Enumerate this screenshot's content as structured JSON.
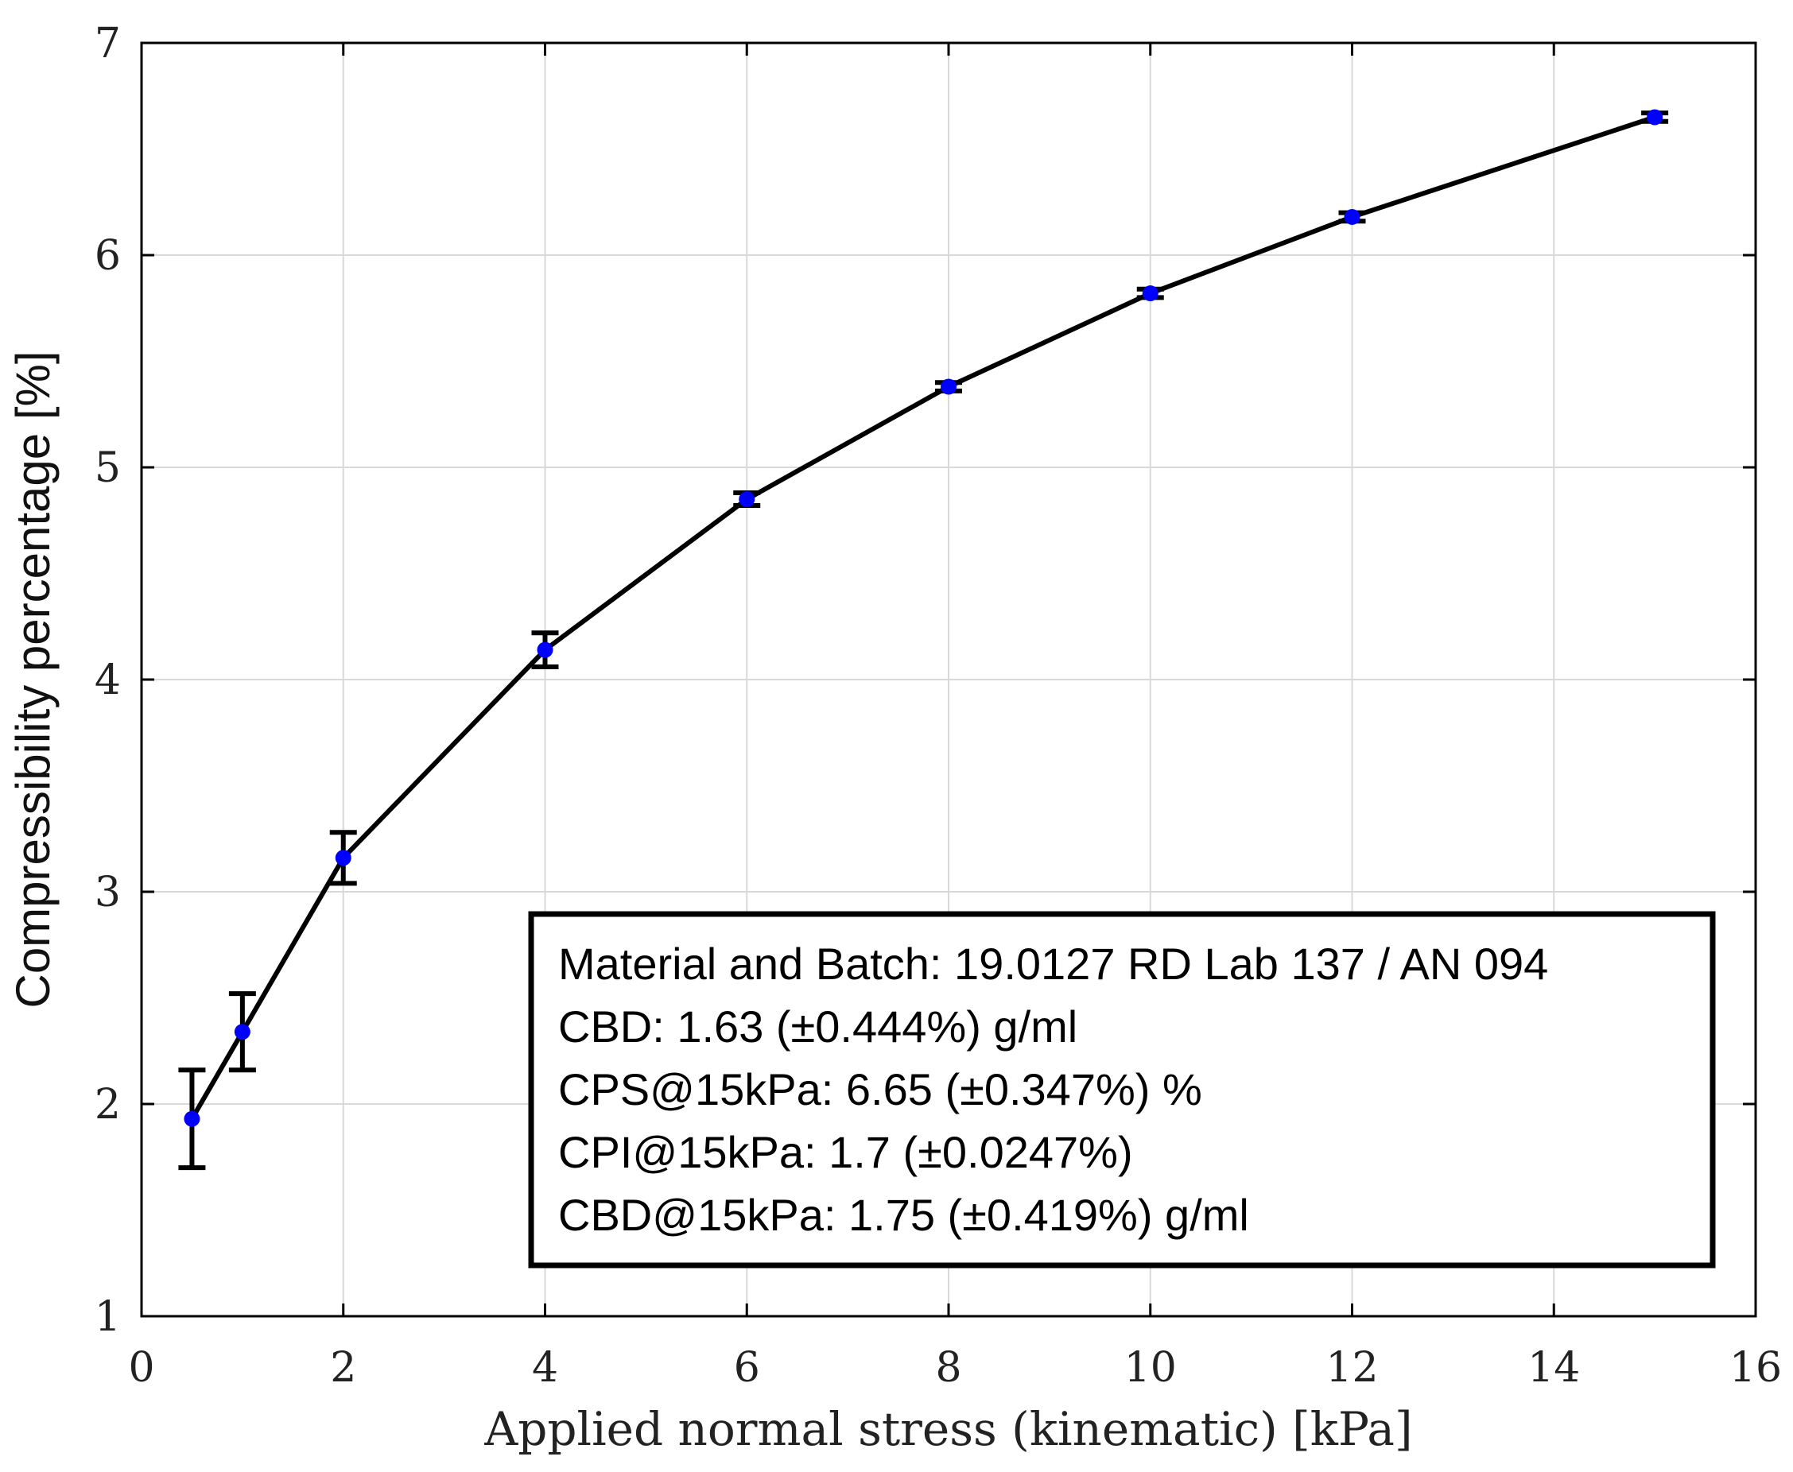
{
  "chart_data": {
    "type": "line",
    "title": "",
    "xlabel": "Applied normal stress (kinematic) [kPa]",
    "ylabel": "Compressibility percentage [%]",
    "xlim": [
      0,
      16
    ],
    "ylim": [
      1,
      7
    ],
    "xticks": [
      0,
      2,
      4,
      6,
      8,
      10,
      12,
      14,
      16
    ],
    "yticks": [
      1,
      2,
      3,
      4,
      5,
      6,
      7
    ],
    "xtick_labels": [
      "0",
      "2",
      "4",
      "6",
      "8",
      "10",
      "12",
      "14",
      "16"
    ],
    "ytick_labels": [
      "1",
      "2",
      "3",
      "4",
      "5",
      "6",
      "7"
    ],
    "grid": true,
    "line_color": "#000000",
    "marker_color": "#0000ff",
    "series": [
      {
        "name": "Compressibility",
        "x": [
          0.5,
          1,
          2,
          4,
          6,
          8,
          10,
          12,
          15
        ],
        "y": [
          1.93,
          2.34,
          3.16,
          4.14,
          4.85,
          5.38,
          5.82,
          6.18,
          6.65
        ],
        "error": [
          0.23,
          0.18,
          0.12,
          0.08,
          0.03,
          0.02,
          0.02,
          0.02,
          0.02
        ]
      }
    ],
    "annotation": {
      "position": "bottom-right",
      "lines": [
        "Material and Batch: 19.0127 RD Lab 137 / AN 094",
        "CBD: 1.63 (±0.444%) g/ml",
        "CPS@15kPa: 6.65 (±0.347%) %",
        "CPI@15kPa: 1.7 (±0.0247%)",
        "CBD@15kPa: 1.75 (±0.419%) g/ml"
      ]
    }
  }
}
